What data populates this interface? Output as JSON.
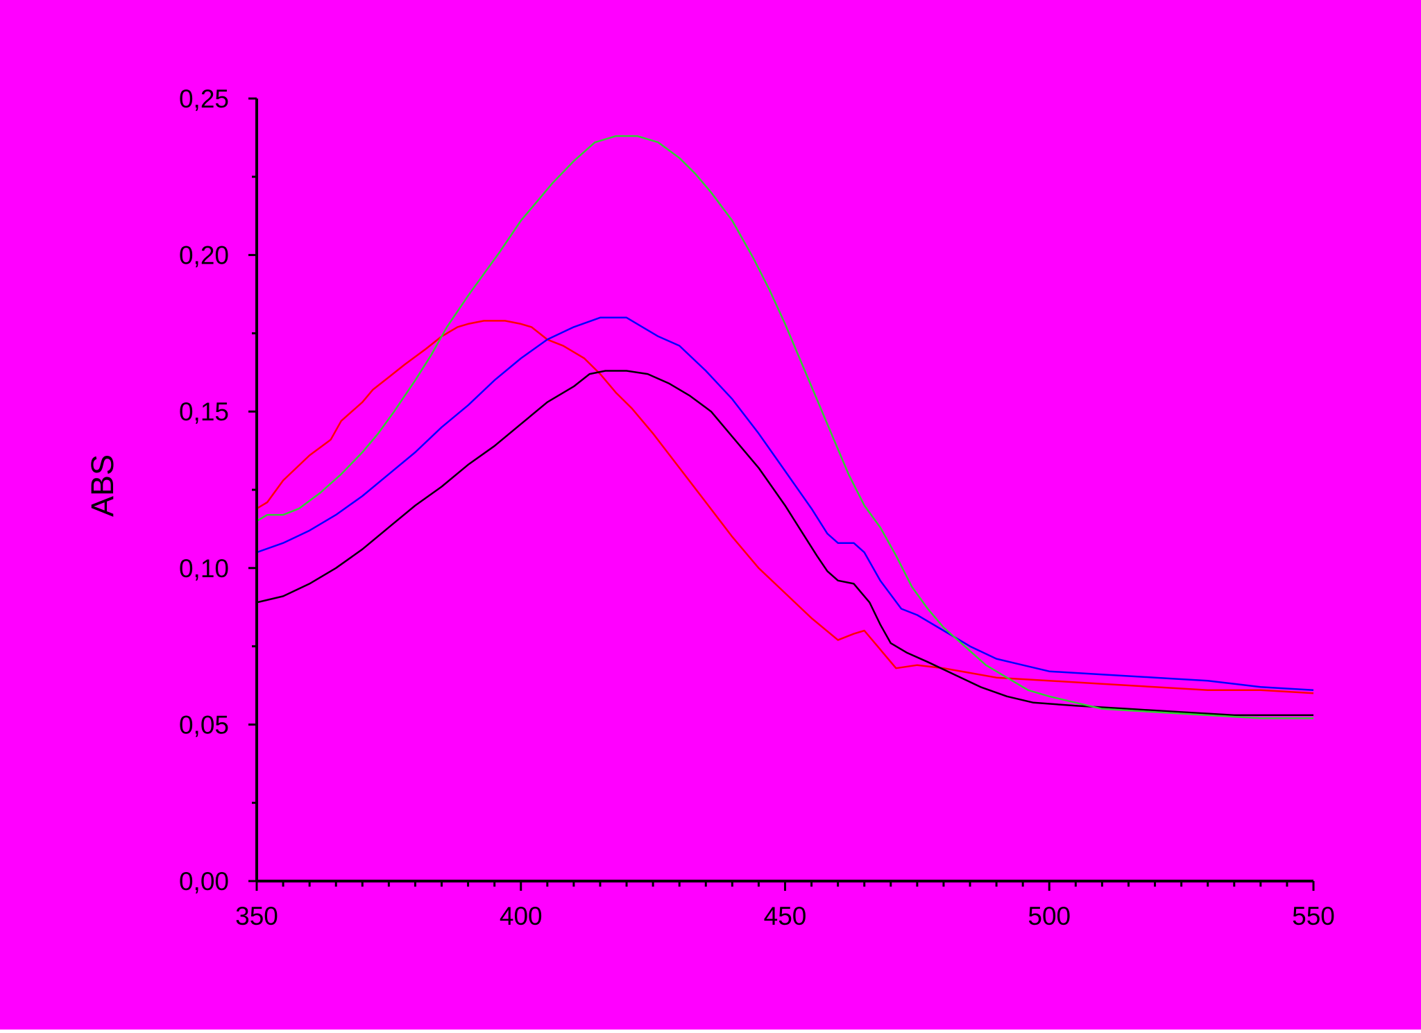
{
  "colors": {
    "background": "#ff00ff",
    "axis": "#000000"
  },
  "chart_data": {
    "type": "line",
    "title": "",
    "xlabel": "",
    "ylabel": "ABS",
    "xlim": [
      350,
      550
    ],
    "ylim": [
      0.0,
      0.25
    ],
    "x_ticks": [
      350,
      400,
      450,
      500,
      550
    ],
    "x_tick_labels": [
      "350",
      "400",
      "450",
      "500",
      "550"
    ],
    "y_ticks": [
      0.0,
      0.05,
      0.1,
      0.15,
      0.2,
      0.25
    ],
    "y_tick_labels": [
      "0,00",
      "0,05",
      "0,10",
      "0,15",
      "0,20",
      "0,25"
    ],
    "grid": false,
    "legend": "none",
    "series": [
      {
        "color": "#ff0000",
        "points": [
          [
            350,
            0.119
          ],
          [
            352,
            0.121
          ],
          [
            355,
            0.128
          ],
          [
            360,
            0.136
          ],
          [
            364,
            0.141
          ],
          [
            366,
            0.147
          ],
          [
            370,
            0.153
          ],
          [
            372,
            0.157
          ],
          [
            375,
            0.161
          ],
          [
            378,
            0.165
          ],
          [
            382,
            0.17
          ],
          [
            385,
            0.174
          ],
          [
            388,
            0.177
          ],
          [
            390,
            0.178
          ],
          [
            393,
            0.179
          ],
          [
            397,
            0.179
          ],
          [
            400,
            0.178
          ],
          [
            402,
            0.177
          ],
          [
            405,
            0.173
          ],
          [
            408,
            0.171
          ],
          [
            412,
            0.167
          ],
          [
            415,
            0.162
          ],
          [
            418,
            0.156
          ],
          [
            421,
            0.151
          ],
          [
            425,
            0.143
          ],
          [
            430,
            0.132
          ],
          [
            435,
            0.121
          ],
          [
            440,
            0.11
          ],
          [
            445,
            0.1
          ],
          [
            450,
            0.092
          ],
          [
            455,
            0.084
          ],
          [
            460,
            0.077
          ],
          [
            463,
            0.079
          ],
          [
            465,
            0.08
          ],
          [
            468,
            0.074
          ],
          [
            471,
            0.068
          ],
          [
            475,
            0.069
          ],
          [
            480,
            0.068
          ],
          [
            490,
            0.065
          ],
          [
            500,
            0.064
          ],
          [
            510,
            0.063
          ],
          [
            520,
            0.062
          ],
          [
            530,
            0.061
          ],
          [
            540,
            0.061
          ],
          [
            550,
            0.06
          ]
        ]
      },
      {
        "color": "#0000ff",
        "points": [
          [
            350,
            0.105
          ],
          [
            355,
            0.108
          ],
          [
            360,
            0.112
          ],
          [
            365,
            0.117
          ],
          [
            370,
            0.123
          ],
          [
            375,
            0.13
          ],
          [
            380,
            0.137
          ],
          [
            385,
            0.145
          ],
          [
            390,
            0.152
          ],
          [
            395,
            0.16
          ],
          [
            400,
            0.167
          ],
          [
            405,
            0.173
          ],
          [
            410,
            0.177
          ],
          [
            415,
            0.18
          ],
          [
            420,
            0.18
          ],
          [
            423,
            0.177
          ],
          [
            426,
            0.174
          ],
          [
            430,
            0.171
          ],
          [
            435,
            0.163
          ],
          [
            440,
            0.154
          ],
          [
            445,
            0.143
          ],
          [
            450,
            0.131
          ],
          [
            455,
            0.119
          ],
          [
            458,
            0.111
          ],
          [
            460,
            0.108
          ],
          [
            463,
            0.108
          ],
          [
            465,
            0.105
          ],
          [
            468,
            0.096
          ],
          [
            472,
            0.087
          ],
          [
            475,
            0.085
          ],
          [
            480,
            0.08
          ],
          [
            485,
            0.075
          ],
          [
            490,
            0.071
          ],
          [
            495,
            0.069
          ],
          [
            500,
            0.067
          ],
          [
            510,
            0.066
          ],
          [
            520,
            0.065
          ],
          [
            530,
            0.064
          ],
          [
            540,
            0.062
          ],
          [
            550,
            0.061
          ]
        ]
      },
      {
        "color": "#000000",
        "points": [
          [
            350,
            0.089
          ],
          [
            355,
            0.091
          ],
          [
            360,
            0.095
          ],
          [
            365,
            0.1
          ],
          [
            370,
            0.106
          ],
          [
            375,
            0.113
          ],
          [
            380,
            0.12
          ],
          [
            385,
            0.126
          ],
          [
            390,
            0.133
          ],
          [
            395,
            0.139
          ],
          [
            400,
            0.146
          ],
          [
            405,
            0.153
          ],
          [
            410,
            0.158
          ],
          [
            413,
            0.162
          ],
          [
            416,
            0.163
          ],
          [
            420,
            0.163
          ],
          [
            424,
            0.162
          ],
          [
            428,
            0.159
          ],
          [
            432,
            0.155
          ],
          [
            436,
            0.15
          ],
          [
            440,
            0.142
          ],
          [
            445,
            0.132
          ],
          [
            450,
            0.12
          ],
          [
            453,
            0.112
          ],
          [
            456,
            0.104
          ],
          [
            458,
            0.099
          ],
          [
            460,
            0.096
          ],
          [
            463,
            0.095
          ],
          [
            466,
            0.089
          ],
          [
            468,
            0.082
          ],
          [
            470,
            0.076
          ],
          [
            473,
            0.073
          ],
          [
            477,
            0.07
          ],
          [
            482,
            0.066
          ],
          [
            487,
            0.062
          ],
          [
            492,
            0.059
          ],
          [
            497,
            0.057
          ],
          [
            505,
            0.056
          ],
          [
            515,
            0.055
          ],
          [
            525,
            0.054
          ],
          [
            535,
            0.053
          ],
          [
            550,
            0.053
          ]
        ]
      },
      {
        "color": "#33cc33",
        "points": [
          [
            350,
            0.115
          ],
          [
            352,
            0.117
          ],
          [
            355,
            0.117
          ],
          [
            358,
            0.119
          ],
          [
            362,
            0.124
          ],
          [
            366,
            0.13
          ],
          [
            370,
            0.137
          ],
          [
            373,
            0.143
          ],
          [
            376,
            0.15
          ],
          [
            380,
            0.16
          ],
          [
            383,
            0.168
          ],
          [
            386,
            0.177
          ],
          [
            390,
            0.187
          ],
          [
            393,
            0.194
          ],
          [
            396,
            0.201
          ],
          [
            400,
            0.211
          ],
          [
            403,
            0.217
          ],
          [
            406,
            0.223
          ],
          [
            410,
            0.23
          ],
          [
            414,
            0.236
          ],
          [
            418,
            0.238
          ],
          [
            422,
            0.238
          ],
          [
            426,
            0.236
          ],
          [
            430,
            0.231
          ],
          [
            433,
            0.226
          ],
          [
            436,
            0.22
          ],
          [
            440,
            0.211
          ],
          [
            444,
            0.199
          ],
          [
            447,
            0.189
          ],
          [
            450,
            0.178
          ],
          [
            453,
            0.166
          ],
          [
            456,
            0.154
          ],
          [
            459,
            0.142
          ],
          [
            462,
            0.13
          ],
          [
            465,
            0.12
          ],
          [
            468,
            0.113
          ],
          [
            471,
            0.104
          ],
          [
            474,
            0.094
          ],
          [
            477,
            0.087
          ],
          [
            480,
            0.081
          ],
          [
            484,
            0.075
          ],
          [
            488,
            0.069
          ],
          [
            492,
            0.065
          ],
          [
            496,
            0.061
          ],
          [
            500,
            0.059
          ],
          [
            505,
            0.057
          ],
          [
            510,
            0.055
          ],
          [
            520,
            0.054
          ],
          [
            530,
            0.053
          ],
          [
            540,
            0.052
          ],
          [
            550,
            0.052
          ]
        ]
      }
    ]
  }
}
